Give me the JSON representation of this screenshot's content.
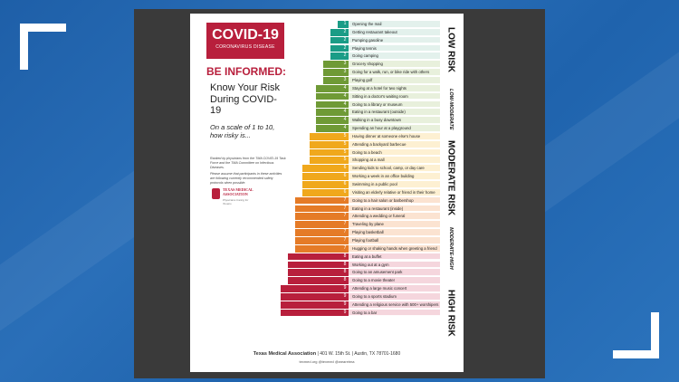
{
  "poster": {
    "covid_title": "COVID-19",
    "covid_subtitle": "CORONAVIRUS DISEASE",
    "be_informed": "BE INFORMED:",
    "headline": "Know Your Risk During COVID-19",
    "scale_question": "On a scale of 1 to 10, how risky is...",
    "ranked_note": "Ranked by physicians from the TMA COVID-19 Task Force and the TMA Committee on Infectious Diseases.",
    "assume_note": "Please assume that participants in these activities are following currently recommended safety protocols when possible.",
    "logo_name": "TEXAS MEDICAL ASSOCIATION",
    "logo_tagline": "Physicians Caring for Texans"
  },
  "categories": [
    "LOW RISK",
    "LOW-MODERATE",
    "MODERATE RISK",
    "MODERATE-HIGH",
    "HIGH RISK"
  ],
  "colors": {
    "1": "#1a9c86",
    "2": "#1a9c86",
    "3": "#6f9a36",
    "4": "#6f9a36",
    "5": "#f0a81c",
    "6": "#f0a81c",
    "7": "#e57b27",
    "8": "#b81f3c",
    "9": "#b81f3c"
  },
  "tints": {
    "1": "#e3f1ec",
    "2": "#e3f1ec",
    "3": "#e8f0dc",
    "4": "#e8f0dc",
    "5": "#fdf0d2",
    "6": "#fdf0d2",
    "7": "#fbe3d1",
    "8": "#f5d6dd",
    "9": "#f5d6dd"
  },
  "activities": [
    {
      "n": "1",
      "text": "Opening the mail"
    },
    {
      "n": "2",
      "text": "Getting restaurant takeout"
    },
    {
      "n": "2",
      "text": "Pumping gasoline"
    },
    {
      "n": "2",
      "text": "Playing tennis"
    },
    {
      "n": "2",
      "text": "Going camping"
    },
    {
      "n": "3",
      "text": "Grocery shopping"
    },
    {
      "n": "3",
      "text": "Going for a walk, run, or bike ride with others"
    },
    {
      "n": "3",
      "text": "Playing golf"
    },
    {
      "n": "4",
      "text": "Staying at a hotel for two nights"
    },
    {
      "n": "4",
      "text": "Sitting in a doctor's waiting room"
    },
    {
      "n": "4",
      "text": "Going to a library or museum"
    },
    {
      "n": "4",
      "text": "Eating in a restaurant (outside)"
    },
    {
      "n": "4",
      "text": "Walking in a busy downtown"
    },
    {
      "n": "4",
      "text": "Spending an hour at a playground"
    },
    {
      "n": "5",
      "text": "Having dinner at someone else's house"
    },
    {
      "n": "5",
      "text": "Attending a backyard barbecue"
    },
    {
      "n": "5",
      "text": "Going to a beach"
    },
    {
      "n": "5",
      "text": "Shopping at a mall"
    },
    {
      "n": "6",
      "text": "Sending kids to school, camp, or day care"
    },
    {
      "n": "6",
      "text": "Working a week in an office building"
    },
    {
      "n": "6",
      "text": "Swimming in a public pool"
    },
    {
      "n": "6",
      "text": "Visiting an elderly relative or friend in their home"
    },
    {
      "n": "7",
      "text": "Going to a hair salon or barbershop"
    },
    {
      "n": "7",
      "text": "Eating in a restaurant (inside)"
    },
    {
      "n": "7",
      "text": "Attending a wedding or funeral"
    },
    {
      "n": "7",
      "text": "Traveling by plane"
    },
    {
      "n": "7",
      "text": "Playing basketball"
    },
    {
      "n": "7",
      "text": "Playing football"
    },
    {
      "n": "7",
      "text": "Hugging or shaking hands when greeting a friend"
    },
    {
      "n": "8",
      "text": "Eating at a buffet"
    },
    {
      "n": "8",
      "text": "Working out at a gym"
    },
    {
      "n": "8",
      "text": "Going to an amusement park"
    },
    {
      "n": "8",
      "text": "Going to a movie theater"
    },
    {
      "n": "9",
      "text": "Attending a large music concert"
    },
    {
      "n": "9",
      "text": "Going to a sports stadium"
    },
    {
      "n": "9",
      "text": "Attending a religious service with 500+ worshipers"
    },
    {
      "n": "9",
      "text": "Going to a bar"
    }
  ],
  "footer": {
    "org": "Texas Medical Association",
    "address": "| 401 W. 15th St. | Austin, TX 78701-1680",
    "links": "texmed.org   @texmed   @wearetma"
  }
}
